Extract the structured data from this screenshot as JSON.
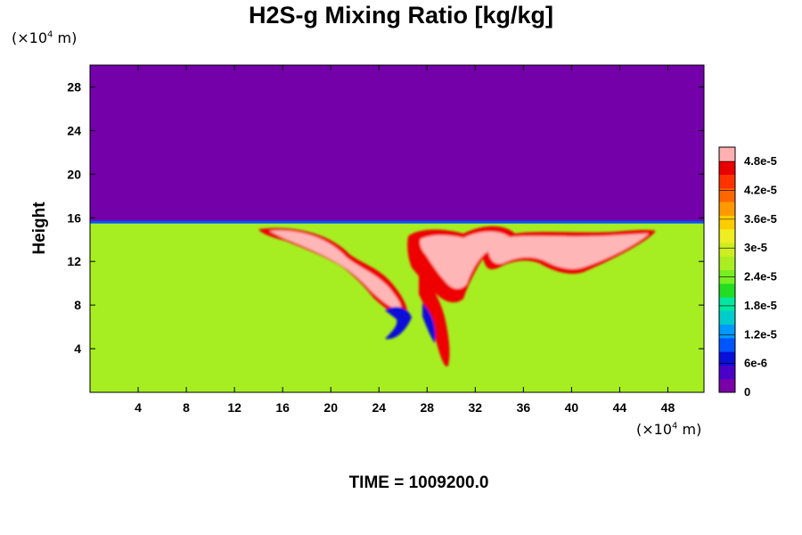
{
  "title": "H2S-g Mixing Ratio [kg/kg]",
  "y_unit": {
    "prefix": "(×10",
    "exp": "4",
    "suffix": " m)"
  },
  "x_unit": {
    "prefix": "(×10",
    "exp": "4",
    "suffix": " m)"
  },
  "time_label": "TIME = 1009200.0",
  "chart_data": {
    "type": "heatmap",
    "title": "H2S-g Mixing Ratio [kg/kg]",
    "ylabel": "Height",
    "xlabel": "",
    "xlim": [
      0,
      51
    ],
    "ylim": [
      0,
      30
    ],
    "x_ticks": [
      4,
      8,
      12,
      16,
      20,
      24,
      28,
      32,
      36,
      40,
      44,
      48
    ],
    "y_ticks": [
      4,
      8,
      12,
      16,
      20,
      24,
      28
    ],
    "colorbar": {
      "min": 0,
      "max": 5.1e-05,
      "ticks": [
        {
          "value": 0,
          "label": "0"
        },
        {
          "value": 6e-06,
          "label": "6e-6"
        },
        {
          "value": 1.2e-05,
          "label": "1.2e-5"
        },
        {
          "value": 1.8e-05,
          "label": "1.8e-5"
        },
        {
          "value": 2.4e-05,
          "label": "2.4e-5"
        },
        {
          "value": 3e-05,
          "label": "3e-5"
        },
        {
          "value": 3.6e-05,
          "label": "3.6e-5"
        },
        {
          "value": 4.2e-05,
          "label": "4.2e-5"
        },
        {
          "value": 4.8e-05,
          "label": "4.8e-5"
        }
      ],
      "colors": [
        "#7a00a8",
        "#4b00c8",
        "#0a10d8",
        "#0055ff",
        "#0099ff",
        "#00cccc",
        "#00e8a0",
        "#22dd22",
        "#77ee22",
        "#aaee22",
        "#ccee22",
        "#eeee22",
        "#ffcc00",
        "#ff9900",
        "#ff6600",
        "#ff3300",
        "#e80000",
        "#ffb0b0"
      ]
    },
    "fields": {
      "upper_layer_value": 0,
      "lower_layer_value": 2.8e-05,
      "interface_height": 15.6,
      "plume_max": 5.1e-05
    },
    "colors": {
      "upper": "#7300a8",
      "lower": "#a6ee22",
      "plume_core": "#ffb6b6",
      "plume_edge": "#ee0000"
    }
  }
}
